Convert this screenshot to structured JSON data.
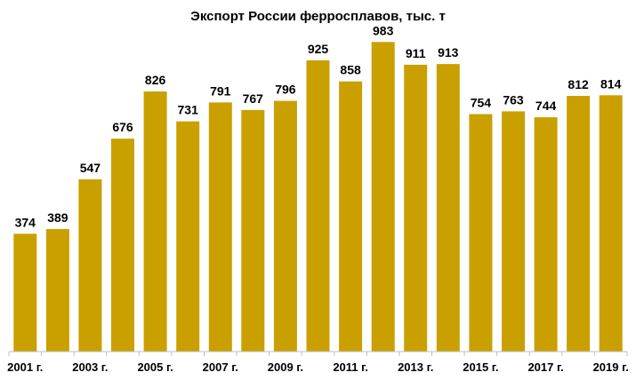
{
  "chart_data": {
    "type": "bar",
    "title": "Экспорт России ферросплавов, тыс. т",
    "categories": [
      "2001",
      "2002",
      "2003",
      "2004",
      "2005",
      "2006",
      "2007",
      "2008",
      "2009",
      "2010",
      "2011",
      "2012",
      "2013",
      "2014",
      "2015",
      "2016",
      "2017",
      "2018",
      "2019"
    ],
    "values": [
      374,
      389,
      547,
      676,
      826,
      731,
      791,
      767,
      796,
      925,
      858,
      983,
      911,
      913,
      754,
      763,
      744,
      812,
      814
    ],
    "tick_labels": [
      "2001 г.",
      "",
      "2003 г.",
      "",
      "2005 г.",
      "",
      "2007 г.",
      "",
      "2009 г.",
      "",
      "2011 г.",
      "",
      "2013 г.",
      "",
      "2015 г.",
      "",
      "2017 г.",
      "",
      "2019 г."
    ],
    "xlabel": "",
    "ylabel": "",
    "ylim": [
      0,
      1060
    ],
    "grid": false,
    "bar_color": "#C9A000"
  }
}
